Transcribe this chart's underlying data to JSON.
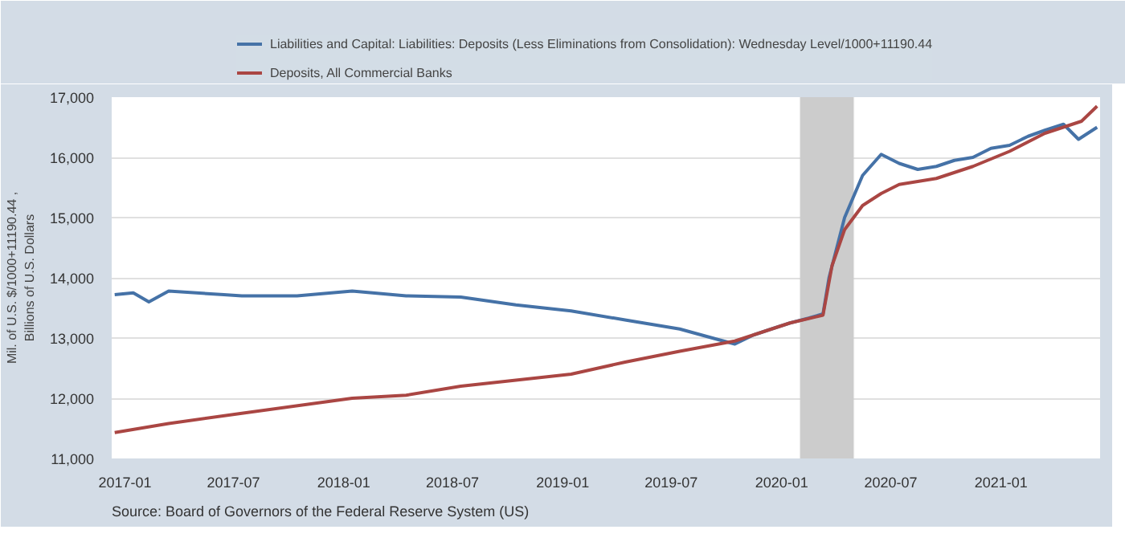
{
  "chart_data": {
    "type": "line",
    "ylabel": "Mil. of U.S. $/1000+11190.44 , Billions of U.S. Dollars",
    "annotations": [
      "Source: Board of Governors of the Federal Reserve System (US)"
    ],
    "xlim": [
      "2016-12-10",
      "2021-06-15"
    ],
    "xticks": [
      "2017-01",
      "2017-07",
      "2018-01",
      "2018-07",
      "2019-01",
      "2019-07",
      "2020-01",
      "2020-07",
      "2021-01"
    ],
    "ylim": [
      11000,
      17000
    ],
    "yticks": [
      {
        "value": 11000,
        "label": "11,000"
      },
      {
        "value": 12000,
        "label": "12,000"
      },
      {
        "value": 13000,
        "label": "13,000"
      },
      {
        "value": 14000,
        "label": "14,000"
      },
      {
        "value": 15000,
        "label": "15,000"
      },
      {
        "value": 16000,
        "label": "16,000"
      },
      {
        "value": 17000,
        "label": "17,000"
      }
    ],
    "grid": "y",
    "legend": "top",
    "bands": [
      {
        "axis": "x",
        "from": "2020-02-01",
        "to": "2020-04-30",
        "color": "#cccccc"
      }
    ],
    "series": [
      {
        "name": "Liabilities and Capital: Liabilities: Deposits (Less Eliminations from Consolidation): Wednesday Level/1000+11190.44",
        "color": "#4572a7",
        "x": [
          "2016-12-15",
          "2017-01-15",
          "2017-02-10",
          "2017-03-15",
          "2017-06-15",
          "2017-07-15",
          "2017-10-15",
          "2018-01-15",
          "2018-04-15",
          "2018-07-15",
          "2018-10-15",
          "2019-01-15",
          "2019-04-15",
          "2019-07-15",
          "2019-09-15",
          "2019-10-15",
          "2019-11-15",
          "2019-12-15",
          "2020-01-15",
          "2020-02-15",
          "2020-03-10",
          "2020-03-20",
          "2020-04-15",
          "2020-05-15",
          "2020-06-15",
          "2020-07-15",
          "2020-08-15",
          "2020-09-15",
          "2020-10-15",
          "2020-11-15",
          "2020-12-15",
          "2021-01-15",
          "2021-02-15",
          "2021-03-15",
          "2021-04-15",
          "2021-05-10",
          "2021-06-10"
        ],
        "values": [
          13720,
          13750,
          13600,
          13780,
          13720,
          13700,
          13700,
          13780,
          13700,
          13680,
          13550,
          13450,
          13300,
          13150,
          12980,
          12900,
          13050,
          13150,
          13250,
          13330,
          13400,
          14000,
          15000,
          15700,
          16050,
          15900,
          15800,
          15850,
          15950,
          16000,
          16150,
          16200,
          16350,
          16450,
          16550,
          16300,
          16500
        ]
      },
      {
        "name": "Deposits, All Commercial Banks",
        "color": "#aa4643",
        "x": [
          "2016-12-15",
          "2017-03-15",
          "2017-07-15",
          "2018-01-15",
          "2018-04-15",
          "2018-07-15",
          "2019-01-15",
          "2019-04-15",
          "2019-07-15",
          "2019-10-15",
          "2020-01-15",
          "2020-03-10",
          "2020-03-25",
          "2020-04-15",
          "2020-05-15",
          "2020-06-15",
          "2020-07-15",
          "2020-09-15",
          "2020-11-15",
          "2021-01-15",
          "2021-03-15",
          "2021-05-15",
          "2021-06-10"
        ],
        "values": [
          11430,
          11580,
          11750,
          12000,
          12050,
          12200,
          12400,
          12600,
          12780,
          12950,
          13250,
          13380,
          14200,
          14800,
          15200,
          15400,
          15550,
          15650,
          15850,
          16100,
          16400,
          16600,
          16850
        ]
      }
    ]
  }
}
